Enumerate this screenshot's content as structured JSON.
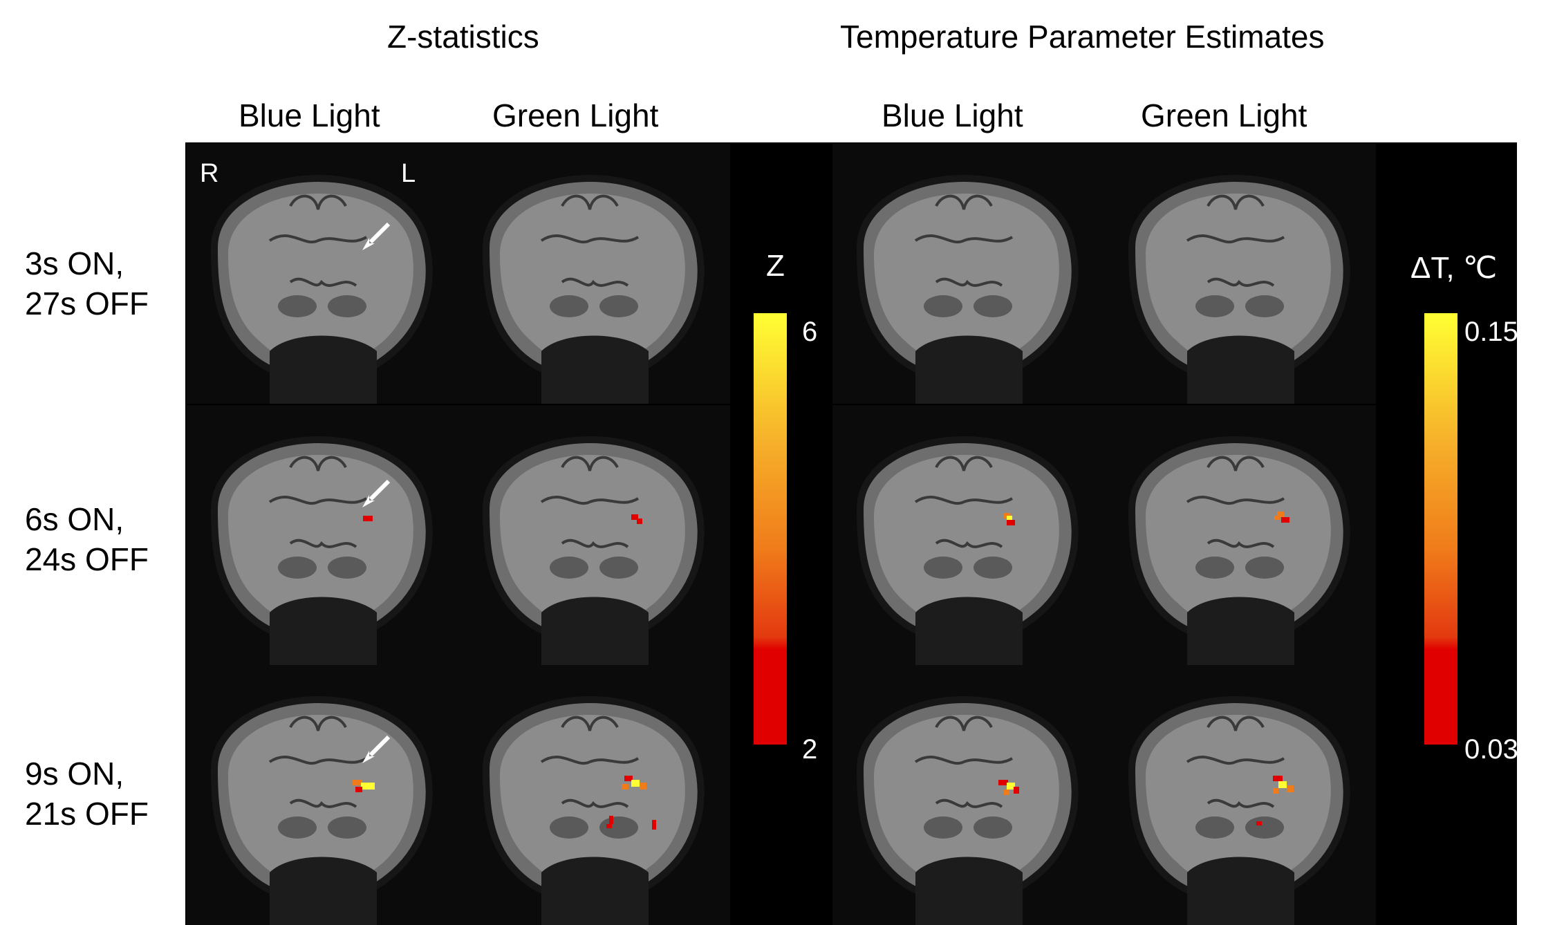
{
  "groups": {
    "zstat": "Z-statistics",
    "temp": "Temperature Parameter Estimates"
  },
  "columns": {
    "blue1": "Blue Light",
    "green1": "Green Light",
    "blue2": "Blue Light",
    "green2": "Green Light"
  },
  "rows": {
    "r1": "3s ON,\n27s OFF",
    "r2": "6s ON,\n24s OFF",
    "r3": "9s ON,\n21s OFF"
  },
  "orientation": {
    "right": "R",
    "left": "L"
  },
  "colorbar_z": {
    "label": "Z",
    "max": "6",
    "min": "2"
  },
  "colorbar_t": {
    "label": "ΔT, ℃",
    "max": "0.15",
    "min": "0.03"
  },
  "colors": {
    "activation_low": "#e00000",
    "activation_mid": "#f07b1a",
    "activation_high": "#ffff33",
    "arrow": "#ffffff"
  }
}
